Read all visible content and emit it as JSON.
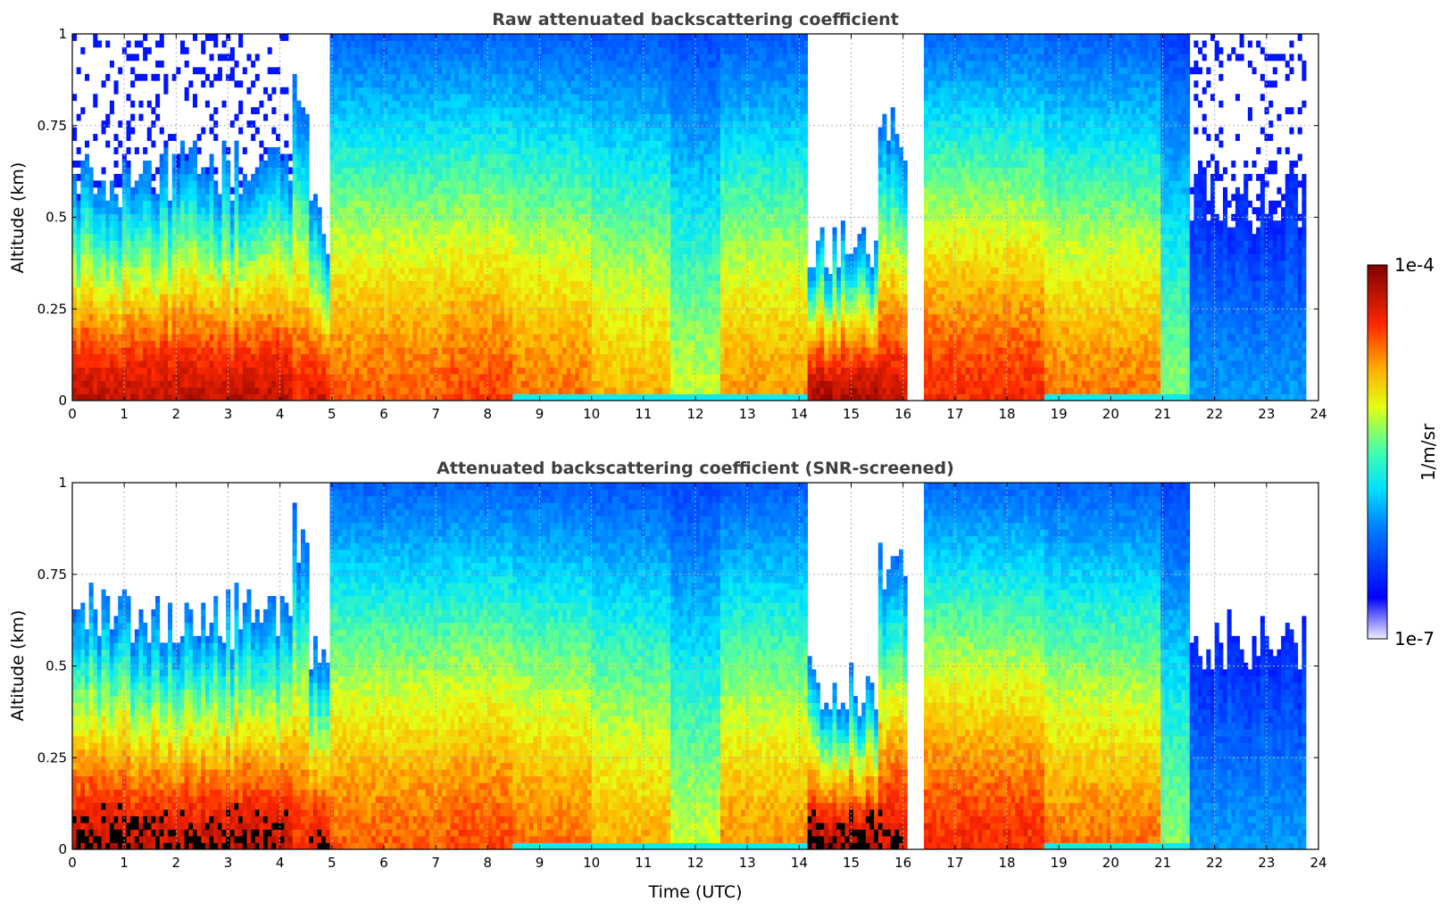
{
  "chart_data": [
    {
      "type": "heatmap",
      "title": "Raw attenuated backscattering coefficient",
      "xlabel": "",
      "ylabel": "Altitude (km)",
      "xlim": [
        0,
        24
      ],
      "ylim": [
        0,
        1
      ],
      "xticks": [
        "0",
        "1",
        "2",
        "3",
        "4",
        "5",
        "6",
        "7",
        "8",
        "9",
        "10",
        "11",
        "12",
        "13",
        "14",
        "15",
        "16",
        "17",
        "18",
        "19",
        "20",
        "21",
        "22",
        "23",
        "24"
      ],
      "yticks": [
        "0",
        "0.25",
        "0.5",
        "0.75",
        "1"
      ],
      "grid": true,
      "screened": false,
      "colormap": "jet",
      "color_scale": "log",
      "value_range": [
        1e-07,
        0.0001
      ],
      "profiles": [
        {
          "start": 0.0,
          "end": 4.2,
          "top": 0.62,
          "core": 0.22,
          "intensity": 0.92,
          "noisy_above": true
        },
        {
          "start": 4.2,
          "end": 4.6,
          "top": 0.85,
          "core": 0.2,
          "intensity": 0.85
        },
        {
          "start": 4.6,
          "end": 5.0,
          "top": 0.48,
          "core": 0.1,
          "intensity": 0.9
        },
        {
          "start": 5.0,
          "end": 7.3,
          "top": 1.0,
          "core": 0.35,
          "intensity": 0.8
        },
        {
          "start": 7.3,
          "end": 8.5,
          "top": 1.0,
          "core": 0.4,
          "intensity": 0.82
        },
        {
          "start": 8.5,
          "end": 10.0,
          "top": 1.0,
          "core": 0.35,
          "intensity": 0.78
        },
        {
          "start": 10.0,
          "end": 11.5,
          "top": 1.0,
          "core": 0.3,
          "intensity": 0.72
        },
        {
          "start": 11.5,
          "end": 12.5,
          "top": 1.0,
          "core": 0.2,
          "intensity": 0.6
        },
        {
          "start": 12.5,
          "end": 14.2,
          "top": 1.0,
          "core": 0.35,
          "intensity": 0.75
        },
        {
          "start": 14.2,
          "end": 15.5,
          "top": 0.42,
          "core": 0.15,
          "intensity": 0.95
        },
        {
          "start": 15.5,
          "end": 16.1,
          "top": 0.72,
          "core": 0.4,
          "intensity": 0.9
        },
        {
          "start": 16.4,
          "end": 18.7,
          "top": 1.0,
          "core": 0.45,
          "intensity": 0.85
        },
        {
          "start": 18.7,
          "end": 21.0,
          "top": 1.0,
          "core": 0.4,
          "intensity": 0.78
        },
        {
          "start": 21.0,
          "end": 21.5,
          "top": 1.0,
          "core": 0.2,
          "intensity": 0.55
        },
        {
          "start": 21.5,
          "end": 23.8,
          "top": 0.55,
          "core": 0.05,
          "intensity": 0.3,
          "noisy_above": true
        }
      ]
    },
    {
      "type": "heatmap",
      "title": "Attenuated backscattering coefficient (SNR-screened)",
      "xlabel": "Time (UTC)",
      "ylabel": "Altitude (km)",
      "xlim": [
        0,
        24
      ],
      "ylim": [
        0,
        1
      ],
      "xticks": [
        "0",
        "1",
        "2",
        "3",
        "4",
        "5",
        "6",
        "7",
        "8",
        "9",
        "10",
        "11",
        "12",
        "13",
        "14",
        "15",
        "16",
        "17",
        "18",
        "19",
        "20",
        "21",
        "22",
        "23",
        "24"
      ],
      "yticks": [
        "0",
        "0.25",
        "0.5",
        "0.75",
        "1"
      ],
      "grid": true,
      "screened": true,
      "colormap": "jet",
      "color_scale": "log",
      "value_range": [
        1e-07,
        0.0001
      ]
    }
  ],
  "colorbar": {
    "label": "1/m/sr",
    "max_label": "1e-4",
    "min_label": "1e-7"
  }
}
